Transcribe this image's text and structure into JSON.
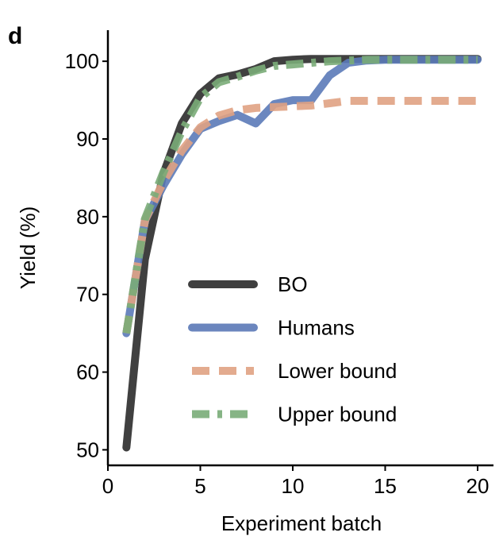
{
  "panel_label": "d",
  "chart_data": {
    "type": "line",
    "xlabel": "Experiment batch",
    "ylabel": "Yield (%)",
    "xlim": [
      0,
      20
    ],
    "ylim": [
      48,
      104
    ],
    "xticks": [
      0,
      5,
      10,
      15,
      20
    ],
    "yticks": [
      50,
      60,
      70,
      80,
      90,
      100
    ],
    "grid": false,
    "legend_position": "center-right",
    "series": [
      {
        "name": "BO",
        "color": "#2b2b2b",
        "dash": "solid",
        "x": [
          1,
          2,
          3,
          4,
          5,
          6,
          7,
          8,
          9,
          10,
          11,
          12,
          13,
          14,
          15,
          16,
          17,
          18,
          19,
          20
        ],
        "y": [
          50.3,
          74.5,
          85.5,
          92,
          95.8,
          97.8,
          98.3,
          99,
          100,
          100.2,
          100.3,
          100.3,
          100.3,
          100.3,
          100.3,
          100.3,
          100.3,
          100.3,
          100.3,
          100.3
        ]
      },
      {
        "name": "Humans",
        "color": "#5b7ab8",
        "dash": "solid",
        "x": [
          1,
          2,
          3,
          4,
          5,
          6,
          7,
          8,
          9,
          10,
          11,
          12,
          13,
          14,
          15,
          16,
          17,
          18,
          19,
          20
        ],
        "y": [
          65,
          79.5,
          84,
          88,
          91.3,
          92.3,
          93.1,
          92,
          94.5,
          95,
          95,
          98.2,
          99.8,
          100.1,
          100.2,
          100.2,
          100.2,
          100.2,
          100.2,
          100.2
        ]
      },
      {
        "name": "Lower bound",
        "color": "#e0a283",
        "dash": "dashed",
        "x": [
          1,
          2,
          3,
          4,
          5,
          6,
          7,
          8,
          9,
          10,
          11,
          12,
          13,
          14,
          15,
          16,
          17,
          18,
          19,
          20
        ],
        "y": [
          65,
          79.5,
          84.5,
          88.5,
          91.5,
          93,
          93.7,
          94,
          94.1,
          94.2,
          94.3,
          94.6,
          94.9,
          94.9,
          94.9,
          94.9,
          94.9,
          94.9,
          94.9,
          94.9
        ]
      },
      {
        "name": "Upper bound",
        "color": "#7aac78",
        "dash": "dashdot",
        "x": [
          1,
          2,
          3,
          4,
          5,
          6,
          7,
          8,
          9,
          10,
          11,
          12,
          13,
          14,
          15,
          16,
          17,
          18,
          19,
          20
        ],
        "y": [
          65,
          79.7,
          85.7,
          91,
          95.3,
          97.3,
          98,
          98.8,
          99.4,
          99.6,
          99.8,
          100,
          100.1,
          100.2,
          100.2,
          100.2,
          100.2,
          100.2,
          100.2,
          100.2
        ]
      }
    ]
  }
}
